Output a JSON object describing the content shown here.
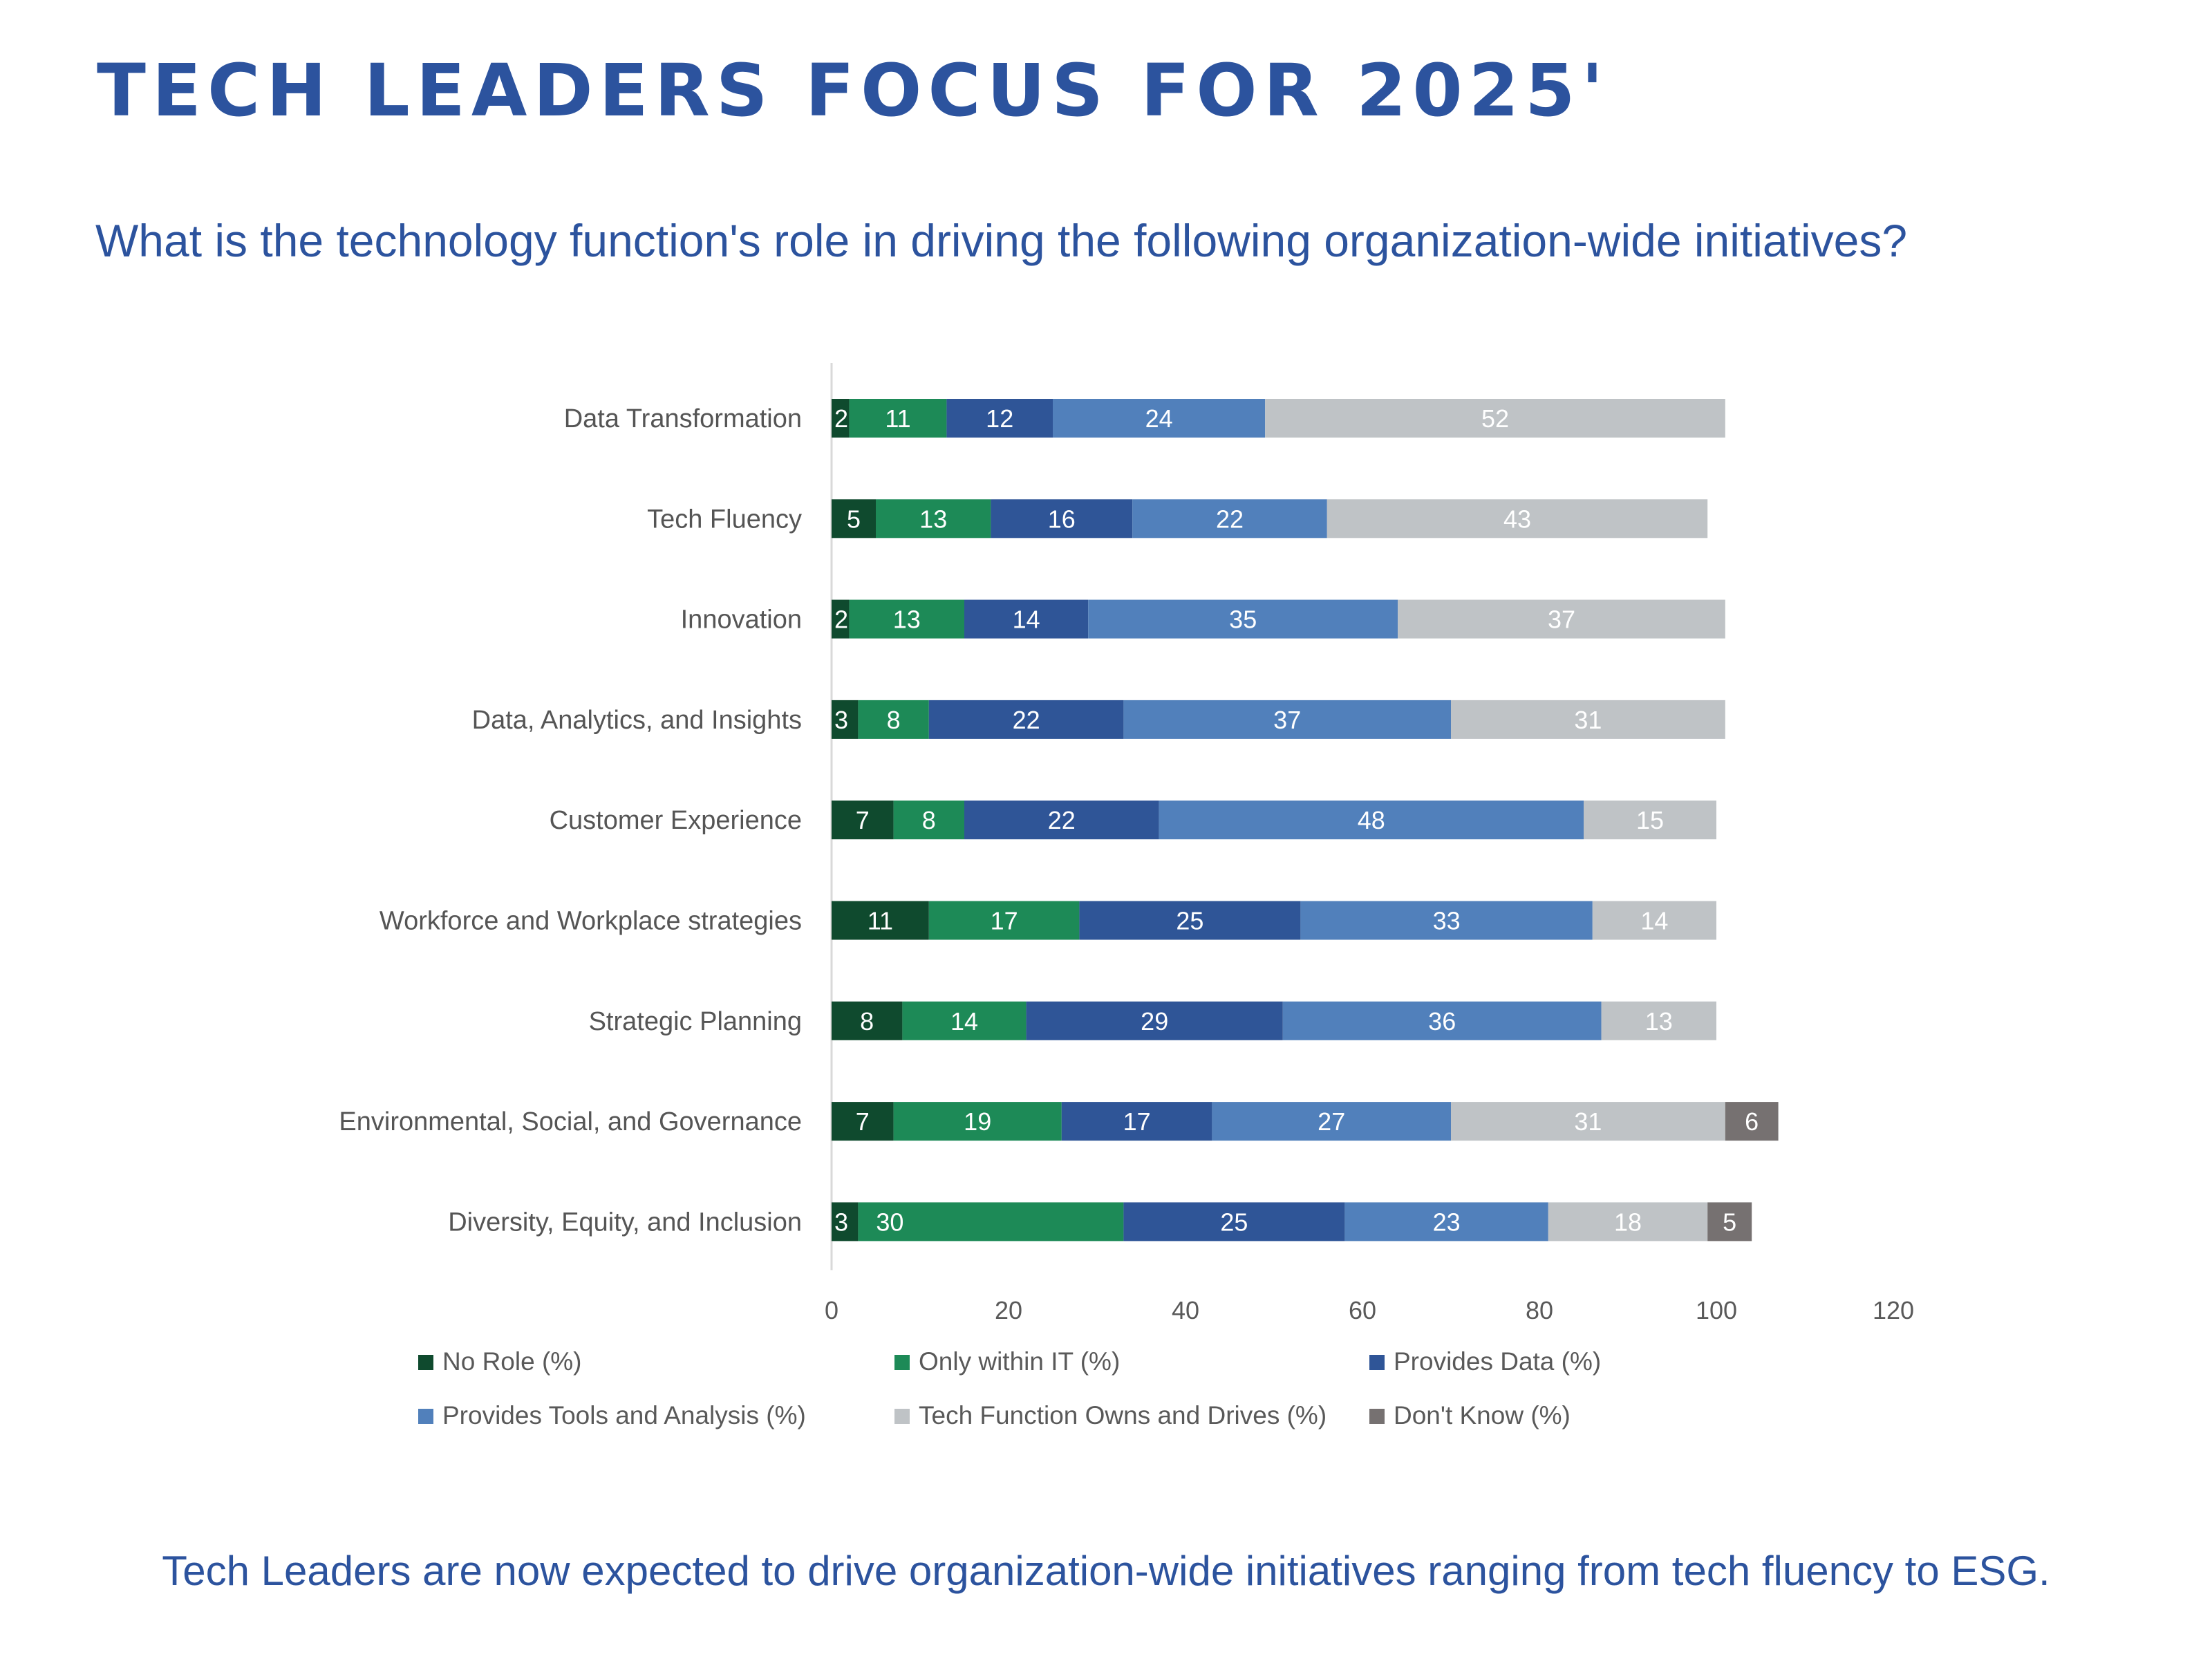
{
  "title": "TECH LEADERS FOCUS FOR 2025'",
  "subtitle": "What is the technology function's role in driving the following organization-wide initiatives?",
  "footer": "Tech Leaders are now expected to drive organization-wide initiatives ranging from tech fluency to ESG.",
  "chart_data": {
    "type": "bar",
    "orientation": "horizontal",
    "stacked": true,
    "categories": [
      "Data Transformation",
      "Tech Fluency",
      "Innovation",
      "Data, Analytics, and Insights",
      "Customer Experience",
      "Workforce and Workplace strategies",
      "Strategic Planning",
      "Environmental, Social, and Governance",
      "Diversity, Equity, and Inclusion"
    ],
    "series": [
      {
        "name": "No Role (%)",
        "color": "#0f4a2e",
        "values": [
          2,
          5,
          2,
          3,
          7,
          11,
          8,
          7,
          3
        ]
      },
      {
        "name": "Only within IT (%)",
        "color": "#1d8a57",
        "values": [
          11,
          13,
          13,
          8,
          8,
          17,
          14,
          19,
          30
        ]
      },
      {
        "name": "Provides Data (%)",
        "color": "#2f5597",
        "values": [
          12,
          16,
          14,
          22,
          22,
          25,
          29,
          17,
          25
        ]
      },
      {
        "name": "Provides Tools and Analysis (%)",
        "color": "#5180bb",
        "values": [
          24,
          22,
          35,
          37,
          48,
          33,
          36,
          27,
          23
        ]
      },
      {
        "name": "Tech Function Owns and Drives (%)",
        "color": "#bfc3c6",
        "values": [
          52,
          43,
          37,
          31,
          15,
          14,
          13,
          31,
          18
        ]
      },
      {
        "name": "Don't Know (%)",
        "color": "#767171",
        "values": [
          null,
          null,
          null,
          null,
          null,
          null,
          null,
          6,
          5
        ]
      }
    ],
    "xlim": [
      0,
      120
    ],
    "xticks": [
      0,
      20,
      40,
      60,
      80,
      100,
      120
    ],
    "data_labels": true,
    "grid": false,
    "legend_position": "bottom"
  }
}
